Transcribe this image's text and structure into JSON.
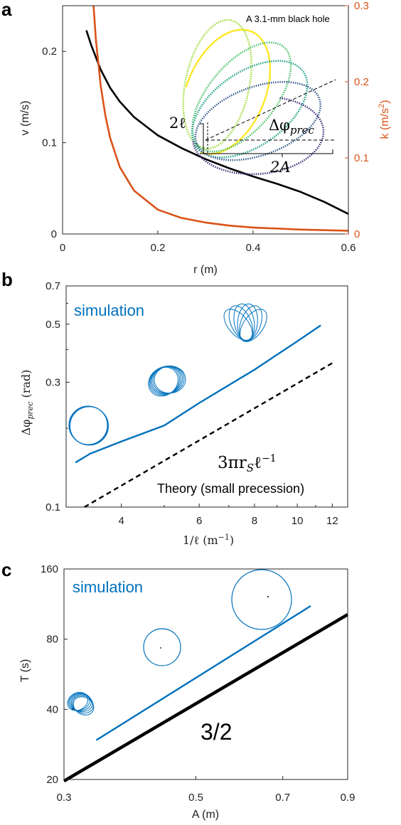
{
  "colors": {
    "black": "#000000",
    "orange": "#d95319",
    "blue": "#0072bd",
    "frame": "#262626",
    "orbit_gradient": [
      "#fde725",
      "#a0da39",
      "#4ac16d",
      "#1fa187",
      "#277f8e",
      "#365c8d",
      "#46327e",
      "#440154"
    ]
  },
  "panels": {
    "a": {
      "label": "a",
      "xlabel": "r (m)",
      "ylabel_left": "v (m/s)",
      "ylabel_right_base": "k (m/s",
      "ylabel_right_exp": "2",
      "ylabel_right_close": ")",
      "inset_title": "A 3.1-mm black hole",
      "ann_2l": "2ℓ",
      "ann_dphi": "Δφ",
      "ann_dphi_sub": "prec",
      "ann_2A": "2A",
      "xticks": [
        "0",
        "0.2",
        "0.4",
        "0.6"
      ],
      "yticks_left": [
        "0",
        "0.1",
        "0.2"
      ],
      "yticks_right": [
        "0",
        "0.1",
        "0.2",
        "0.3"
      ]
    },
    "b": {
      "label": "b",
      "xlabel_base": "1/ℓ (m",
      "xlabel_exp": "−1",
      "xlabel_close": ")",
      "ylabel_base": "Δφ",
      "ylabel_sub": "prec",
      "ylabel_unit": " (rad)",
      "sim_label": "simulation",
      "theory_formula": "3πr",
      "theory_formula_sub": "S",
      "theory_formula_tail": "ℓ",
      "theory_formula_exp": "−1",
      "theory_label": "Theory (small precession)",
      "xticks": [
        "4",
        "6",
        "8",
        "10",
        "12"
      ],
      "yticks": [
        "0.1",
        "0.3",
        "0.5",
        "0.7"
      ]
    },
    "c": {
      "label": "c",
      "xlabel": "A (m)",
      "ylabel": "T (s)",
      "sim_label": "simulation",
      "slope_label": "3/2",
      "xticks": [
        "0.3",
        "0.5",
        "0.7",
        "0.9"
      ],
      "yticks": [
        "20",
        "40",
        "80",
        "160"
      ]
    }
  },
  "chart_data": [
    {
      "type": "line",
      "panel": "a",
      "xlabel": "r (m)",
      "ylabel": "v (m/s)",
      "y2label": "k (m/s^2)",
      "xlim": [
        0,
        0.6
      ],
      "ylim": [
        0,
        0.25
      ],
      "y2lim": [
        0,
        0.3
      ],
      "grid": false,
      "series": [
        {
          "axis": "left",
          "color": "#000000",
          "x": [
            0.05,
            0.06,
            0.08,
            0.1,
            0.12,
            0.15,
            0.2,
            0.25,
            0.3,
            0.35,
            0.4,
            0.45,
            0.5,
            0.55,
            0.6
          ],
          "y": [
            0.223,
            0.207,
            0.18,
            0.16,
            0.145,
            0.128,
            0.108,
            0.094,
            0.082,
            0.072,
            0.063,
            0.055,
            0.046,
            0.035,
            0.022
          ]
        },
        {
          "axis": "right",
          "color": "#d95319",
          "x": [
            0.065,
            0.07,
            0.08,
            0.09,
            0.1,
            0.12,
            0.15,
            0.2,
            0.25,
            0.3,
            0.35,
            0.4,
            0.5,
            0.6
          ],
          "y": [
            0.3,
            0.255,
            0.195,
            0.155,
            0.126,
            0.088,
            0.057,
            0.032,
            0.021,
            0.015,
            0.011,
            0.0085,
            0.0058,
            0.0043
          ]
        }
      ]
    },
    {
      "type": "line",
      "panel": "b",
      "xscale": "log",
      "yscale": "log",
      "xlim": [
        3,
        13
      ],
      "ylim": [
        0.1,
        0.7
      ],
      "grid": false,
      "series": [
        {
          "name": "simulation",
          "color": "#0072bd",
          "style": "solid",
          "x": [
            3.15,
            3.4,
            4.0,
            5.0,
            6.0,
            8.0,
            10.0,
            11.3
          ],
          "y": [
            0.148,
            0.16,
            0.178,
            0.205,
            0.25,
            0.335,
            0.43,
            0.495
          ]
        },
        {
          "name": "Theory (small precession)",
          "color": "#000000",
          "style": "dashed",
          "x": [
            3.3,
            12.0
          ],
          "y": [
            0.1,
            0.355
          ]
        }
      ]
    },
    {
      "type": "line",
      "panel": "c",
      "xscale": "log",
      "yscale": "log",
      "xlim": [
        0.3,
        0.9
      ],
      "ylim": [
        20,
        160
      ],
      "grid": false,
      "series": [
        {
          "name": "simulation",
          "color": "#0072bd",
          "style": "solid",
          "x": [
            0.34,
            0.78
          ],
          "y": [
            29.5,
            111
          ]
        },
        {
          "name": "3/2",
          "color": "#000000",
          "style": "solid-thick",
          "x": [
            0.3,
            0.9
          ],
          "y": [
            19.7,
            102
          ]
        }
      ]
    }
  ]
}
